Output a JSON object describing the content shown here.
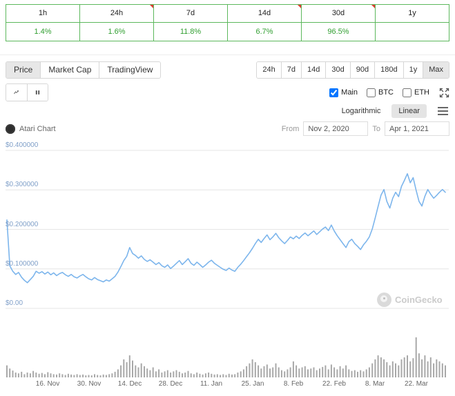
{
  "perf_table": {
    "columns": [
      {
        "label": "1h",
        "value": "1.4%",
        "flag": false
      },
      {
        "label": "24h",
        "value": "1.6%",
        "flag": true
      },
      {
        "label": "7d",
        "value": "11.8%",
        "flag": false
      },
      {
        "label": "14d",
        "value": "6.7%",
        "flag": true
      },
      {
        "label": "30d",
        "value": "96.5%",
        "flag": true
      },
      {
        "label": "1y",
        "value": "",
        "flag": false
      }
    ]
  },
  "tabs": {
    "items": [
      "Price",
      "Market Cap",
      "TradingView"
    ],
    "active": "Price"
  },
  "ranges": {
    "items": [
      "24h",
      "7d",
      "14d",
      "30d",
      "90d",
      "180d",
      "1y",
      "Max"
    ],
    "active": "Max"
  },
  "series_toggles": [
    {
      "label": "Main",
      "checked": true
    },
    {
      "label": "BTC",
      "checked": false
    },
    {
      "label": "ETH",
      "checked": false
    }
  ],
  "icons": [
    "line-chart-icon",
    "candlestick-icon",
    "expand-arrows-icon",
    "hamburger-menu-icon",
    "atari-logo-icon",
    "coingecko-logo-icon",
    "change-flag-icon"
  ],
  "scale": {
    "log_label": "Logarithmic",
    "linear_label": "Linear",
    "active": "Linear"
  },
  "chart_header": {
    "title": "Atari Chart",
    "from_label": "From",
    "from_value": "Nov 2, 2020",
    "to_label": "To",
    "to_value": "Apr 1, 2021"
  },
  "watermark": {
    "text": "CoinGecko"
  },
  "colors": {
    "table_green": "#5cb85c",
    "value_green": "#2f9e2f",
    "line_blue": "#7cb5ec",
    "volume_gray": "#a8a8a8",
    "y_label_blue": "#7f9fc8",
    "flag_red": "#e03c31"
  },
  "chart_data": {
    "type": "line",
    "title": "Atari Chart",
    "x_range": [
      "Nov 2, 2020",
      "Apr 1, 2021"
    ],
    "x_unit": "days since Nov 2, 2020",
    "grid": true,
    "legend": "none",
    "ylim": [
      0,
      0.4
    ],
    "y_ticks": [
      {
        "label": "$0.400000",
        "value": 0.4
      },
      {
        "label": "$0.300000",
        "value": 0.3
      },
      {
        "label": "$0.200000",
        "value": 0.2
      },
      {
        "label": "$0.100000",
        "value": 0.1
      },
      {
        "label": "$0.00",
        "value": 0.0
      }
    ],
    "x_ticks": [
      {
        "label": "16. Nov",
        "day": 14
      },
      {
        "label": "30. Nov",
        "day": 28
      },
      {
        "label": "14. Dec",
        "day": 42
      },
      {
        "label": "28. Dec",
        "day": 56
      },
      {
        "label": "11. Jan",
        "day": 70
      },
      {
        "label": "25. Jan",
        "day": 84
      },
      {
        "label": "8. Feb",
        "day": 98
      },
      {
        "label": "22. Feb",
        "day": 112
      },
      {
        "label": "8. Mar",
        "day": 126
      },
      {
        "label": "22. Mar",
        "day": 140
      }
    ],
    "series": [
      {
        "name": "Atari price (USD)",
        "color": "#7cb5ec",
        "values": [
          0.224,
          0.108,
          0.094,
          0.086,
          0.091,
          0.079,
          0.071,
          0.065,
          0.073,
          0.081,
          0.094,
          0.089,
          0.093,
          0.087,
          0.092,
          0.085,
          0.09,
          0.083,
          0.088,
          0.091,
          0.085,
          0.081,
          0.086,
          0.08,
          0.077,
          0.082,
          0.086,
          0.08,
          0.075,
          0.072,
          0.078,
          0.073,
          0.07,
          0.067,
          0.072,
          0.069,
          0.075,
          0.081,
          0.092,
          0.106,
          0.121,
          0.132,
          0.154,
          0.139,
          0.134,
          0.127,
          0.133,
          0.124,
          0.119,
          0.123,
          0.117,
          0.111,
          0.116,
          0.108,
          0.104,
          0.11,
          0.101,
          0.107,
          0.114,
          0.121,
          0.111,
          0.118,
          0.126,
          0.114,
          0.109,
          0.117,
          0.111,
          0.104,
          0.11,
          0.117,
          0.122,
          0.114,
          0.109,
          0.104,
          0.099,
          0.096,
          0.102,
          0.097,
          0.094,
          0.104,
          0.112,
          0.121,
          0.131,
          0.141,
          0.152,
          0.164,
          0.175,
          0.167,
          0.177,
          0.186,
          0.174,
          0.181,
          0.19,
          0.179,
          0.171,
          0.164,
          0.172,
          0.181,
          0.176,
          0.183,
          0.177,
          0.185,
          0.191,
          0.184,
          0.19,
          0.196,
          0.187,
          0.194,
          0.201,
          0.206,
          0.197,
          0.211,
          0.196,
          0.184,
          0.174,
          0.164,
          0.154,
          0.169,
          0.175,
          0.164,
          0.157,
          0.149,
          0.161,
          0.17,
          0.181,
          0.201,
          0.229,
          0.258,
          0.287,
          0.301,
          0.271,
          0.254,
          0.279,
          0.294,
          0.283,
          0.309,
          0.324,
          0.341,
          0.318,
          0.331,
          0.299,
          0.271,
          0.259,
          0.284,
          0.301,
          0.289,
          0.279,
          0.286,
          0.294,
          0.301,
          0.294
        ]
      }
    ],
    "volume": {
      "name": "volume (relative 0-1, unlabeled axis)",
      "color": "#a8a8a8",
      "relative_values": [
        0.3,
        0.22,
        0.17,
        0.12,
        0.1,
        0.14,
        0.08,
        0.12,
        0.1,
        0.16,
        0.12,
        0.09,
        0.11,
        0.08,
        0.13,
        0.1,
        0.08,
        0.07,
        0.1,
        0.08,
        0.06,
        0.09,
        0.07,
        0.06,
        0.08,
        0.06,
        0.07,
        0.05,
        0.06,
        0.05,
        0.08,
        0.06,
        0.05,
        0.07,
        0.06,
        0.08,
        0.1,
        0.14,
        0.2,
        0.3,
        0.45,
        0.38,
        0.55,
        0.42,
        0.3,
        0.25,
        0.35,
        0.28,
        0.22,
        0.18,
        0.25,
        0.15,
        0.2,
        0.12,
        0.15,
        0.18,
        0.12,
        0.15,
        0.18,
        0.14,
        0.1,
        0.12,
        0.16,
        0.1,
        0.08,
        0.12,
        0.09,
        0.07,
        0.1,
        0.12,
        0.09,
        0.07,
        0.08,
        0.06,
        0.08,
        0.06,
        0.09,
        0.07,
        0.08,
        0.12,
        0.15,
        0.2,
        0.28,
        0.35,
        0.45,
        0.38,
        0.3,
        0.22,
        0.28,
        0.32,
        0.22,
        0.25,
        0.35,
        0.25,
        0.18,
        0.15,
        0.2,
        0.25,
        0.4,
        0.3,
        0.22,
        0.25,
        0.28,
        0.2,
        0.22,
        0.25,
        0.18,
        0.22,
        0.26,
        0.3,
        0.2,
        0.32,
        0.25,
        0.2,
        0.28,
        0.22,
        0.3,
        0.2,
        0.16,
        0.18,
        0.14,
        0.18,
        0.15,
        0.2,
        0.25,
        0.35,
        0.45,
        0.55,
        0.5,
        0.45,
        0.38,
        0.3,
        0.4,
        0.35,
        0.3,
        0.45,
        0.5,
        0.55,
        0.4,
        0.48,
        1.0,
        0.6,
        0.45,
        0.55,
        0.4,
        0.5,
        0.35,
        0.45,
        0.4,
        0.35,
        0.3
      ]
    }
  }
}
